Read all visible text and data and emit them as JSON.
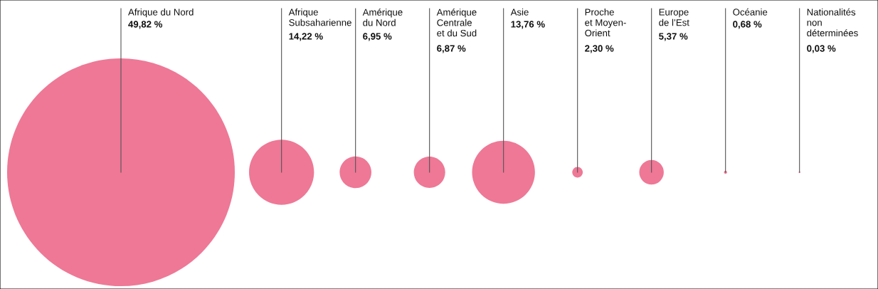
{
  "chart_data": {
    "type": "other",
    "categories": [
      "Afrique du Nord",
      "Afrique\nSubsaharienne",
      "Amérique\ndu Nord",
      "Amérique\nCentrale\net du Sud",
      "Asie",
      "Proche\net Moyen-\nOrient",
      "Europe\nde l’Est",
      "Océanie",
      "Nationalités\nnon\ndéterminées"
    ],
    "values": [
      49.82,
      14.22,
      6.95,
      6.87,
      13.76,
      2.3,
      5.37,
      0.68,
      0.03
    ],
    "value_labels": [
      "49,82 %",
      "14,22 %",
      "6,95 %",
      "6,87 %",
      "13,76 %",
      "2,30 %",
      "5,37 %",
      "0,68 %",
      "0,03 %"
    ],
    "color": "#ee7896"
  }
}
